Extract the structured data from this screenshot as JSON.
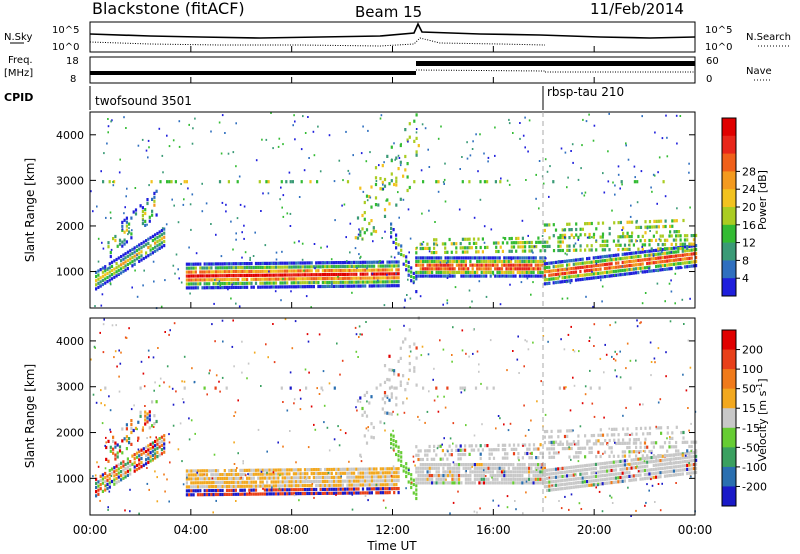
{
  "header": {
    "station": "Blackstone (fitACF)",
    "beam": "Beam 15",
    "date": "11/Feb/2014"
  },
  "summary_panel": {
    "left_label_top": "N.Sky",
    "left_ticks_top": [
      "10^5",
      "10^0"
    ],
    "right_label_top": "N.Search",
    "right_ticks_top": [
      "10^5",
      "10^0"
    ],
    "left_label_freq_1": "Freq.",
    "left_label_freq_2": "[MHz]",
    "freq_ticks": [
      "18",
      "8"
    ],
    "right_label_nave": "Nave",
    "nave_ticks": [
      "60",
      "0"
    ],
    "cpid_label": "CPID",
    "cpid_segments": [
      {
        "label": "twofsound 3501",
        "start_hour": 0
      },
      {
        "label": "rbsp-tau 210",
        "start_hour": 18
      }
    ]
  },
  "chart_data": [
    {
      "type": "heatmap",
      "title": "",
      "xlabel": "",
      "ylabel": "Slant Range [km]",
      "xlim_hours": [
        0,
        24
      ],
      "ylim": [
        200,
        4500
      ],
      "y_ticks": [
        "1000",
        "2000",
        "3000",
        "4000"
      ],
      "colorbar": {
        "label": "Power [dB]",
        "ticks": [
          "4",
          "8",
          "12",
          "16",
          "20",
          "24",
          "28"
        ],
        "colors": [
          "#1f1fdc",
          "#2f6fbf",
          "#3a9a76",
          "#33bb33",
          "#aacc22",
          "#f2c21f",
          "#f39a1f",
          "#f0601a",
          "#e8261a",
          "#e00000"
        ]
      }
    },
    {
      "type": "heatmap",
      "title": "",
      "xlabel": "Time UT",
      "ylabel": "Slant Range [km]",
      "xlim_hours": [
        0,
        24
      ],
      "ylim": [
        200,
        4500
      ],
      "y_ticks": [
        "1000",
        "2000",
        "3000",
        "4000"
      ],
      "x_ticks": [
        "00:00",
        "04:00",
        "08:00",
        "12:00",
        "16:00",
        "20:00",
        "00:00"
      ],
      "colorbar": {
        "label": "Velocity [m s^-1]",
        "ticks": [
          "200",
          "100",
          "50",
          "15",
          "-15",
          "-50",
          "-100",
          "-200"
        ],
        "colors": [
          "#1a1ac8",
          "#2a6fb0",
          "#3aa060",
          "#66cc33",
          "#c8c8c8",
          "#f2a81f",
          "#f07a1a",
          "#e8401a",
          "#e00000"
        ]
      }
    }
  ]
}
